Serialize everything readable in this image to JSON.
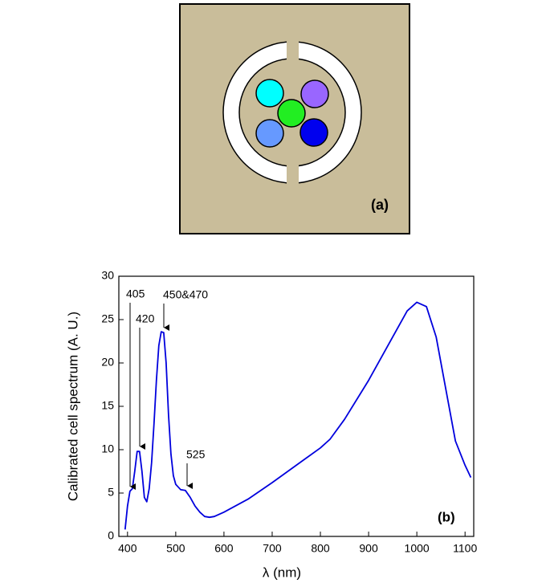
{
  "figure_a": {
    "label": "(a)"
  },
  "chart_data": {
    "type": "line",
    "x_label": "λ (nm)",
    "y_label": "Calibrated cell spectrum (A. U.)",
    "panel_label": "(b)",
    "annotations": [
      "405",
      "420",
      "450&470",
      "525"
    ],
    "xlim": [
      382,
      1118
    ],
    "ylim": [
      0,
      30
    ],
    "xticks": [
      400,
      500,
      600,
      700,
      800,
      900,
      1000,
      1100
    ],
    "yticks": [
      0,
      5,
      10,
      15,
      20,
      25,
      30
    ],
    "x": [
      395,
      400,
      405,
      410,
      415,
      420,
      425,
      430,
      435,
      440,
      445,
      450,
      455,
      460,
      465,
      470,
      475,
      480,
      485,
      490,
      495,
      500,
      510,
      520,
      530,
      540,
      550,
      560,
      570,
      580,
      600,
      650,
      700,
      750,
      800,
      820,
      850,
      900,
      950,
      980,
      1000,
      1020,
      1040,
      1060,
      1080,
      1100,
      1112
    ],
    "series": [
      {
        "color": "#0000dd",
        "values": [
          0.8,
          3.5,
          5.2,
          5.5,
          7.5,
          9.8,
          9.8,
          7.5,
          4.5,
          4.0,
          5.5,
          8.5,
          13,
          18,
          22,
          23.6,
          23.5,
          20,
          14,
          9.5,
          7,
          6,
          5.4,
          5.3,
          4.5,
          3.5,
          2.8,
          2.3,
          2.2,
          2.3,
          2.8,
          4.3,
          6.2,
          8.2,
          10.2,
          11.2,
          13.5,
          18,
          23,
          26,
          27,
          26.5,
          23,
          17,
          11,
          8.2,
          6.8
        ]
      }
    ]
  }
}
